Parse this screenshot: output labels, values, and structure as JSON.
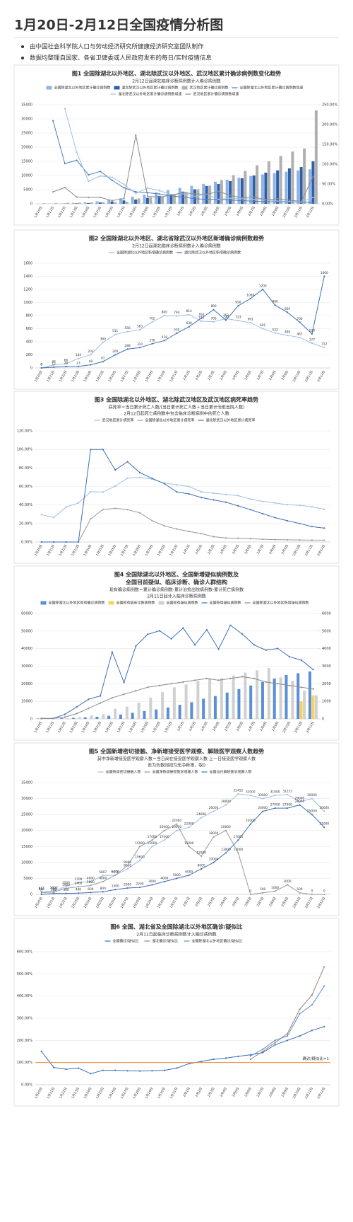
{
  "header": {
    "title": "1月20日-2月12日全国疫情分析图",
    "notes": [
      "由中国社会科学院人口与劳动经济研究所健康经济研究室团队制作",
      "数据均整理自国家、各省卫健委或人民政府发布的每日/实时疫情信息"
    ]
  },
  "chart_data": [
    {
      "type": "combo",
      "title": "图1 全国除湖北以外地区、湖北除武汉以外地区、武汉地区累计确诊病例数变化趋势",
      "subtitle": [
        "2月12日起湖北临床诊断病例数计入确诊病例数"
      ],
      "categories": [
        "1月20日",
        "1月21日",
        "1月22日",
        "1月23日",
        "1月24日",
        "1月25日",
        "1月26日",
        "1月27日",
        "1月28日",
        "1月29日",
        "1月30日",
        "1月31日",
        "2月1日",
        "2月2日",
        "2月3日",
        "2月4日",
        "2月5日",
        "2月6日",
        "2月7日",
        "2月8日",
        "2月9日",
        "2月10日",
        "2月11日",
        "2月12日"
      ],
      "ylim": [
        0,
        35000
      ],
      "yticks": [
        0,
        5000,
        10000,
        15000,
        20000,
        25000,
        30000,
        35000
      ],
      "y2lim": [
        0,
        250
      ],
      "y2ticks": [
        {
          "value": 0,
          "label": "0.00%"
        },
        {
          "value": 50,
          "label": "50.00%"
        },
        {
          "value": 100,
          "label": "100.00%"
        },
        {
          "value": 150,
          "label": "150.00%"
        },
        {
          "value": 200,
          "label": "200.00%"
        },
        {
          "value": 250,
          "label": "250.00%"
        }
      ],
      "grid": true,
      "series": [
        {
          "name": "全国除湖北以外地区累计确诊病例数",
          "type": "bar",
          "color": "#8fb4e3",
          "values": [
            21,
            65,
            131,
            275,
            476,
            865,
            1376,
            1932,
            2515,
            3217,
            4017,
            4811,
            5625,
            6340,
            7045,
            7798,
            8521,
            9212,
            9813,
            10345,
            10843,
            11320,
            11770,
            12173
          ]
        },
        {
          "name": "湖北除武汉以外地区累计确诊病例数",
          "type": "bar",
          "color": "#2e5fa8",
          "values": [
            0,
            12,
            81,
            180,
            282,
            480,
            800,
            1188,
            1500,
            2100,
            2800,
            3450,
            4300,
            5100,
            6300,
            7000,
            8000,
            9000,
            10000,
            11000,
            11800,
            12500,
            13000,
            15020
          ]
        },
        {
          "name": "武汉地区累计确诊病例数",
          "type": "bar",
          "color": "#b0b0b0",
          "values": [
            198,
            258,
            363,
            425,
            495,
            572,
            618,
            698,
            1905,
            2261,
            2639,
            3215,
            4109,
            5142,
            6384,
            8351,
            10117,
            11618,
            13603,
            14982,
            16902,
            18454,
            19558,
            32994
          ]
        },
        {
          "name": "全国除湖北以外地区累计确诊病例数增速",
          "type": "line",
          "axis": "y2",
          "color": "#4a7cc0",
          "values": [
            null,
            209.5,
            101.5,
            109.9,
            73.1,
            81.7,
            59.1,
            40.4,
            30.2,
            27.9,
            24.9,
            19.8,
            16.9,
            12.7,
            11.1,
            10.7,
            9.3,
            8.1,
            6.5,
            5.4,
            4.8,
            4.4,
            4.0,
            3.4
          ]
        },
        {
          "name": "湖北除武汉以外地区累计确诊病例数增速",
          "type": "line",
          "axis": "y2",
          "color": "#9fbfe6",
          "values": [
            null,
            null,
            240,
            130,
            57,
            70,
            67,
            49,
            26,
            40,
            33,
            23,
            25,
            19,
            24,
            11,
            14,
            13,
            11,
            10,
            7,
            6,
            4,
            16
          ]
        },
        {
          "name": "武汉地区累计确诊病例数增速",
          "type": "line",
          "axis": "y2",
          "color": "#8a8a8a",
          "values": [
            null,
            30,
            41,
            17,
            16,
            16,
            8,
            13,
            173,
            19,
            17,
            22,
            28,
            25,
            24,
            31,
            21,
            15,
            17,
            10,
            13,
            9,
            6,
            69
          ]
        }
      ]
    },
    {
      "type": "line",
      "title": "图2 全国除湖北以外地区、湖北省除武汉以外地区新增确诊病例数趋势",
      "subtitle": [
        "2月12日起湖北临床诊断病例数计入确诊病例数"
      ],
      "categories": [
        "1月20日",
        "1月21日",
        "1月22日",
        "1月23日",
        "1月24日",
        "1月25日",
        "1月26日",
        "1月27日",
        "1月28日",
        "1月29日",
        "1月30日",
        "1月31日",
        "2月1日",
        "2月2日",
        "2月3日",
        "2月4日",
        "2月5日",
        "2月6日",
        "2月7日",
        "2月8日",
        "2月9日",
        "2月10日",
        "2月11日",
        "2月12日"
      ],
      "ylim": [
        0,
        1600
      ],
      "yticks": [
        0,
        200,
        400,
        600,
        800,
        1000,
        1200,
        1400,
        1600
      ],
      "grid": true,
      "labels": true,
      "series": [
        {
          "name": "全国除湖北以外地区新增确诊病例数",
          "color": "#9fbfe6",
          "values": [
            0,
            44,
            66,
            144,
            201,
            389,
            511,
            556,
            583,
            702,
            800,
            794,
            814,
            715,
            705,
            753,
            723,
            691,
            601,
            532,
            498,
            467,
            377,
            312
          ]
        },
        {
          "name": "湖北除武汉以外地区新增确诊病例数",
          "color": "#3d6fb8",
          "values": [
            0,
            12,
            20,
            23,
            48,
            97,
            200,
            288,
            310,
            370,
            418,
            530,
            630,
            760,
            890,
            730,
            950,
            1060,
            1200,
            960,
            850,
            700,
            520,
            1400
          ]
        }
      ]
    },
    {
      "type": "line",
      "title": "图3 全国除湖北以外地区、湖北除武汉地区及武汉地区病死率趋势",
      "subtitle": [
        "病死率＝当日累计死亡人数/(当日累计死亡人数＋当日累计治愈出院人数)",
        "2月12日起死亡病例数中包含临床诊断病例中的死亡人数"
      ],
      "categories": [
        "1月20日",
        "1月21日",
        "1月22日",
        "1月23日",
        "1月24日",
        "1月25日",
        "1月26日",
        "1月27日",
        "1月28日",
        "1月29日",
        "1月30日",
        "1月31日",
        "2月1日",
        "2月2日",
        "2月3日",
        "2月4日",
        "2月5日",
        "2月6日",
        "2月7日",
        "2月8日",
        "2月9日",
        "2月10日",
        "2月11日",
        "2月12日"
      ],
      "ylim": [
        0,
        120
      ],
      "yticks": [
        {
          "value": 0,
          "label": "0.00%"
        },
        {
          "value": 20,
          "label": "20.00%"
        },
        {
          "value": 40,
          "label": "40.00%"
        },
        {
          "value": 60,
          "label": "60.00%"
        },
        {
          "value": 80,
          "label": "80.00%"
        },
        {
          "value": 100,
          "label": "100.00%"
        },
        {
          "value": 120,
          "label": "120.00%"
        }
      ],
      "grid": true,
      "series": [
        {
          "name": "武汉地区累计病死率",
          "color": "#9fbfe6",
          "values": [
            29.55,
            26.47,
            37.78,
            42.19,
            54.29,
            53.96,
            60.38,
            68.97,
            69.79,
            67.95,
            63.57,
            61.84,
            60.0,
            54.17,
            52.72,
            51.42,
            50.08,
            46.38,
            43.9,
            42.24,
            40.26,
            39.67,
            37.95,
            35.36
          ]
        },
        {
          "name": "全国除湖北以外地区累计病死率",
          "color": "#9a9a9a",
          "values": [
            0,
            0,
            0,
            0,
            25,
            35,
            36.36,
            35,
            31.58,
            23.08,
            17.39,
            14.08,
            11.49,
            9.13,
            5.71,
            4.43,
            4.03,
            3.53,
            2.97,
            2.6,
            2.38,
            2.25,
            2.02,
            1.96
          ]
        },
        {
          "name": "湖北除武汉以外地区累计病死率",
          "color": "#3d6fb8",
          "values": [
            0,
            0,
            0,
            0,
            100,
            100,
            77.78,
            86.67,
            75,
            68.75,
            63,
            54.04,
            52,
            48.08,
            45.51,
            43,
            39,
            35,
            30.57,
            26.38,
            22.97,
            20,
            16.67,
            15
          ]
        }
      ]
    },
    {
      "type": "combo",
      "title": [
        "图4 全国除湖北以外地区、全国新增疑似病例数及",
        "全国目前疑似、临床诊断、确诊人群结构"
      ],
      "subtitle": [
        "现有确诊病例数＝累计确诊病例数-累计治愈出院病例数-累计死亡病例数",
        "2月11日起计入临床诊断病例数"
      ],
      "categories": [
        "1月20日",
        "1月21日",
        "1月22日",
        "1月23日",
        "1月24日",
        "1月25日",
        "1月26日",
        "1月27日",
        "1月28日",
        "1月29日",
        "1月30日",
        "1月31日",
        "2月1日",
        "2月2日",
        "2月3日",
        "2月4日",
        "2月5日",
        "2月6日",
        "2月7日",
        "2月8日",
        "2月9日",
        "2月10日",
        "2月11日",
        "2月12日"
      ],
      "ylim": [
        0,
        60000
      ],
      "yticks": [
        0,
        10000,
        20000,
        30000,
        40000,
        50000,
        60000
      ],
      "y2lim": [
        0,
        6000
      ],
      "y2ticks": [
        0,
        1000,
        2000,
        3000,
        4000,
        5000,
        6000
      ],
      "grid": true,
      "series": [
        {
          "name": "全国除湖北以外地区现有确诊病例数",
          "type": "bar",
          "color": "#5b8fd4",
          "values": [
            200,
            300,
            400,
            600,
            900,
            1200,
            1800,
            2500,
            3500,
            4500,
            5400,
            6500,
            8000,
            9500,
            11500,
            13000,
            15000,
            17000,
            19000,
            21000,
            23000,
            25000,
            26000,
            27000
          ]
        },
        {
          "name": "全国现有临床诊断病例数",
          "type": "bar",
          "color": "#f7d35a",
          "values": [
            null,
            null,
            null,
            null,
            null,
            null,
            null,
            null,
            null,
            null,
            null,
            null,
            null,
            null,
            null,
            null,
            null,
            null,
            null,
            null,
            null,
            null,
            10000,
            13435
          ]
        },
        {
          "name": "全国现有疑似病例数",
          "type": "bar",
          "color": "#d0d0d0",
          "values": [
            54,
            37,
            393,
            1072,
            1965,
            2684,
            5794,
            6973,
            9239,
            12167,
            15238,
            17988,
            19544,
            21558,
            23214,
            23260,
            24702,
            26359,
            27657,
            28942,
            23589,
            21675,
            16067,
            13435
          ]
        },
        {
          "name": "全国新增疑似病例数",
          "type": "line",
          "axis": "y2",
          "color": "#3d6fb8",
          "values": [
            27,
            26,
            257,
            680,
            1118,
            1309,
            3806,
            2077,
            4148,
            4812,
            5019,
            4562,
            5173,
            4214,
            5072,
            3971,
            5328,
            4833,
            4214,
            3916,
            4008,
            3536,
            3342,
            2807
          ]
        },
        {
          "name": "全国除湖北以外地区新增疑似病例数",
          "type": "line",
          "axis": "y2",
          "color": "#8a8a8a",
          "values": [
            20,
            30,
            100,
            300,
            600,
            900,
            1200,
            1400,
            1600,
            1800,
            1900,
            2000,
            2100,
            2200,
            2300,
            2200,
            2300,
            2400,
            2300,
            2100,
            2000,
            1900,
            1800,
            1700
          ]
        }
      ]
    },
    {
      "type": "line",
      "title": "图5 全国新增密切接触、净新增接受医学观察、解除医学观察人数趋势",
      "subtitle": [
        "其中净新增接受医学观察人数＝当日尚在接受医学观察人数-上一日接受医学观察人数",
        "若为负数则视为无净新增，取0"
      ],
      "categories": [
        "1月20日",
        "1月21日",
        "1月22日",
        "1月23日",
        "1月24日",
        "1月25日",
        "1月26日",
        "1月27日",
        "1月28日",
        "1月29日",
        "1月30日",
        "1月31日",
        "2月1日",
        "2月2日",
        "2月3日",
        "2月4日",
        "2月5日",
        "2月6日",
        "2月7日",
        "2月8日",
        "2月9日",
        "2月10日",
        "2月11日",
        "2月12日"
      ],
      "ylim": [
        0,
        35000
      ],
      "yticks": [
        0,
        5000,
        10000,
        15000,
        20000,
        25000,
        30000,
        35000
      ],
      "grid": true,
      "labels": true,
      "series": [
        {
          "name": "全国新增密切接触人数",
          "color": "#9fbfe6",
          "values": [
            817,
            1000,
            2500,
            3700,
            4000,
            5897,
            6000,
            8000,
            10600,
            15000,
            17000,
            20000,
            21000,
            24000,
            26000,
            28000,
            31452,
            31000,
            30000,
            31000,
            31233,
            29000,
            30000,
            26000
          ]
        },
        {
          "name": "全国净新增接受医学观察人数",
          "color": "#9a9a9a",
          "values": [
            500,
            700,
            1900,
            2400,
            2800,
            4000,
            6000,
            9000,
            15000,
            17000,
            20000,
            22000,
            15000,
            12000,
            18000,
            20000,
            13000,
            0,
            500,
            1000,
            3000,
            500,
            0,
            0
          ]
        },
        {
          "name": "全国当日解除医学观察人数",
          "color": "#3d6fb8",
          "values": [
            0,
            300,
            300,
            400,
            600,
            800,
            1500,
            2000,
            2200,
            3000,
            4000,
            5000,
            6000,
            8000,
            10000,
            13000,
            17000,
            22000,
            26000,
            27000,
            27000,
            28000,
            25000,
            21000
          ]
        }
      ]
    },
    {
      "type": "line",
      "title": "图6 全国、湖北省及全国除湖北以外地区确诊/疑似比",
      "subtitle": [
        "2月11日起临床诊断病例数计入确诊病例数"
      ],
      "categories": [
        "1月20日",
        "1月21日",
        "1月22日",
        "1月23日",
        "1月24日",
        "1月25日",
        "1月26日",
        "1月27日",
        "1月28日",
        "1月29日",
        "1月30日",
        "1月31日",
        "2月1日",
        "2月2日",
        "2月3日",
        "2月4日",
        "2月5日",
        "2月6日",
        "2月7日",
        "2月8日",
        "2月9日",
        "2月10日",
        "2月11日",
        "2月12日"
      ],
      "ylim": [
        0,
        600
      ],
      "yticks": [
        {
          "value": 0,
          "label": "0.00%"
        },
        {
          "value": 100,
          "label": "100.00%"
        },
        {
          "value": 200,
          "label": "200.00%"
        },
        {
          "value": 300,
          "label": "300.00%"
        },
        {
          "value": 400,
          "label": "400.00%"
        },
        {
          "value": 500,
          "label": "500.00%"
        },
        {
          "value": 600,
          "label": "600.00%"
        }
      ],
      "grid": true,
      "reference": {
        "value": 100,
        "label": "确诊/疑似比=1",
        "color": "#f08c3c"
      },
      "series": [
        {
          "name": "全国确诊/疑似比",
          "color": "#3d6fb8",
          "values": [
            150,
            78,
            70,
            75,
            50,
            65,
            65,
            63,
            62,
            63,
            65,
            75,
            95,
            105,
            115,
            120,
            128,
            135,
            145,
            180,
            200,
            220,
            245,
            262
          ]
        },
        {
          "name": "湖北确诊/疑似比",
          "color": "#a08070",
          "values": [
            null,
            null,
            null,
            null,
            null,
            null,
            null,
            null,
            null,
            null,
            null,
            null,
            null,
            null,
            null,
            null,
            null,
            115,
            150,
            190,
            230,
            340,
            405,
            532
          ]
        },
        {
          "name": "全国除湖北以外地区确诊/疑似比",
          "color": "#5b8fd4",
          "values": [
            null,
            null,
            null,
            null,
            null,
            null,
            null,
            null,
            null,
            null,
            null,
            null,
            null,
            null,
            null,
            null,
            null,
            130,
            160,
            200,
            220,
            320,
            360,
            445
          ]
        }
      ]
    }
  ]
}
